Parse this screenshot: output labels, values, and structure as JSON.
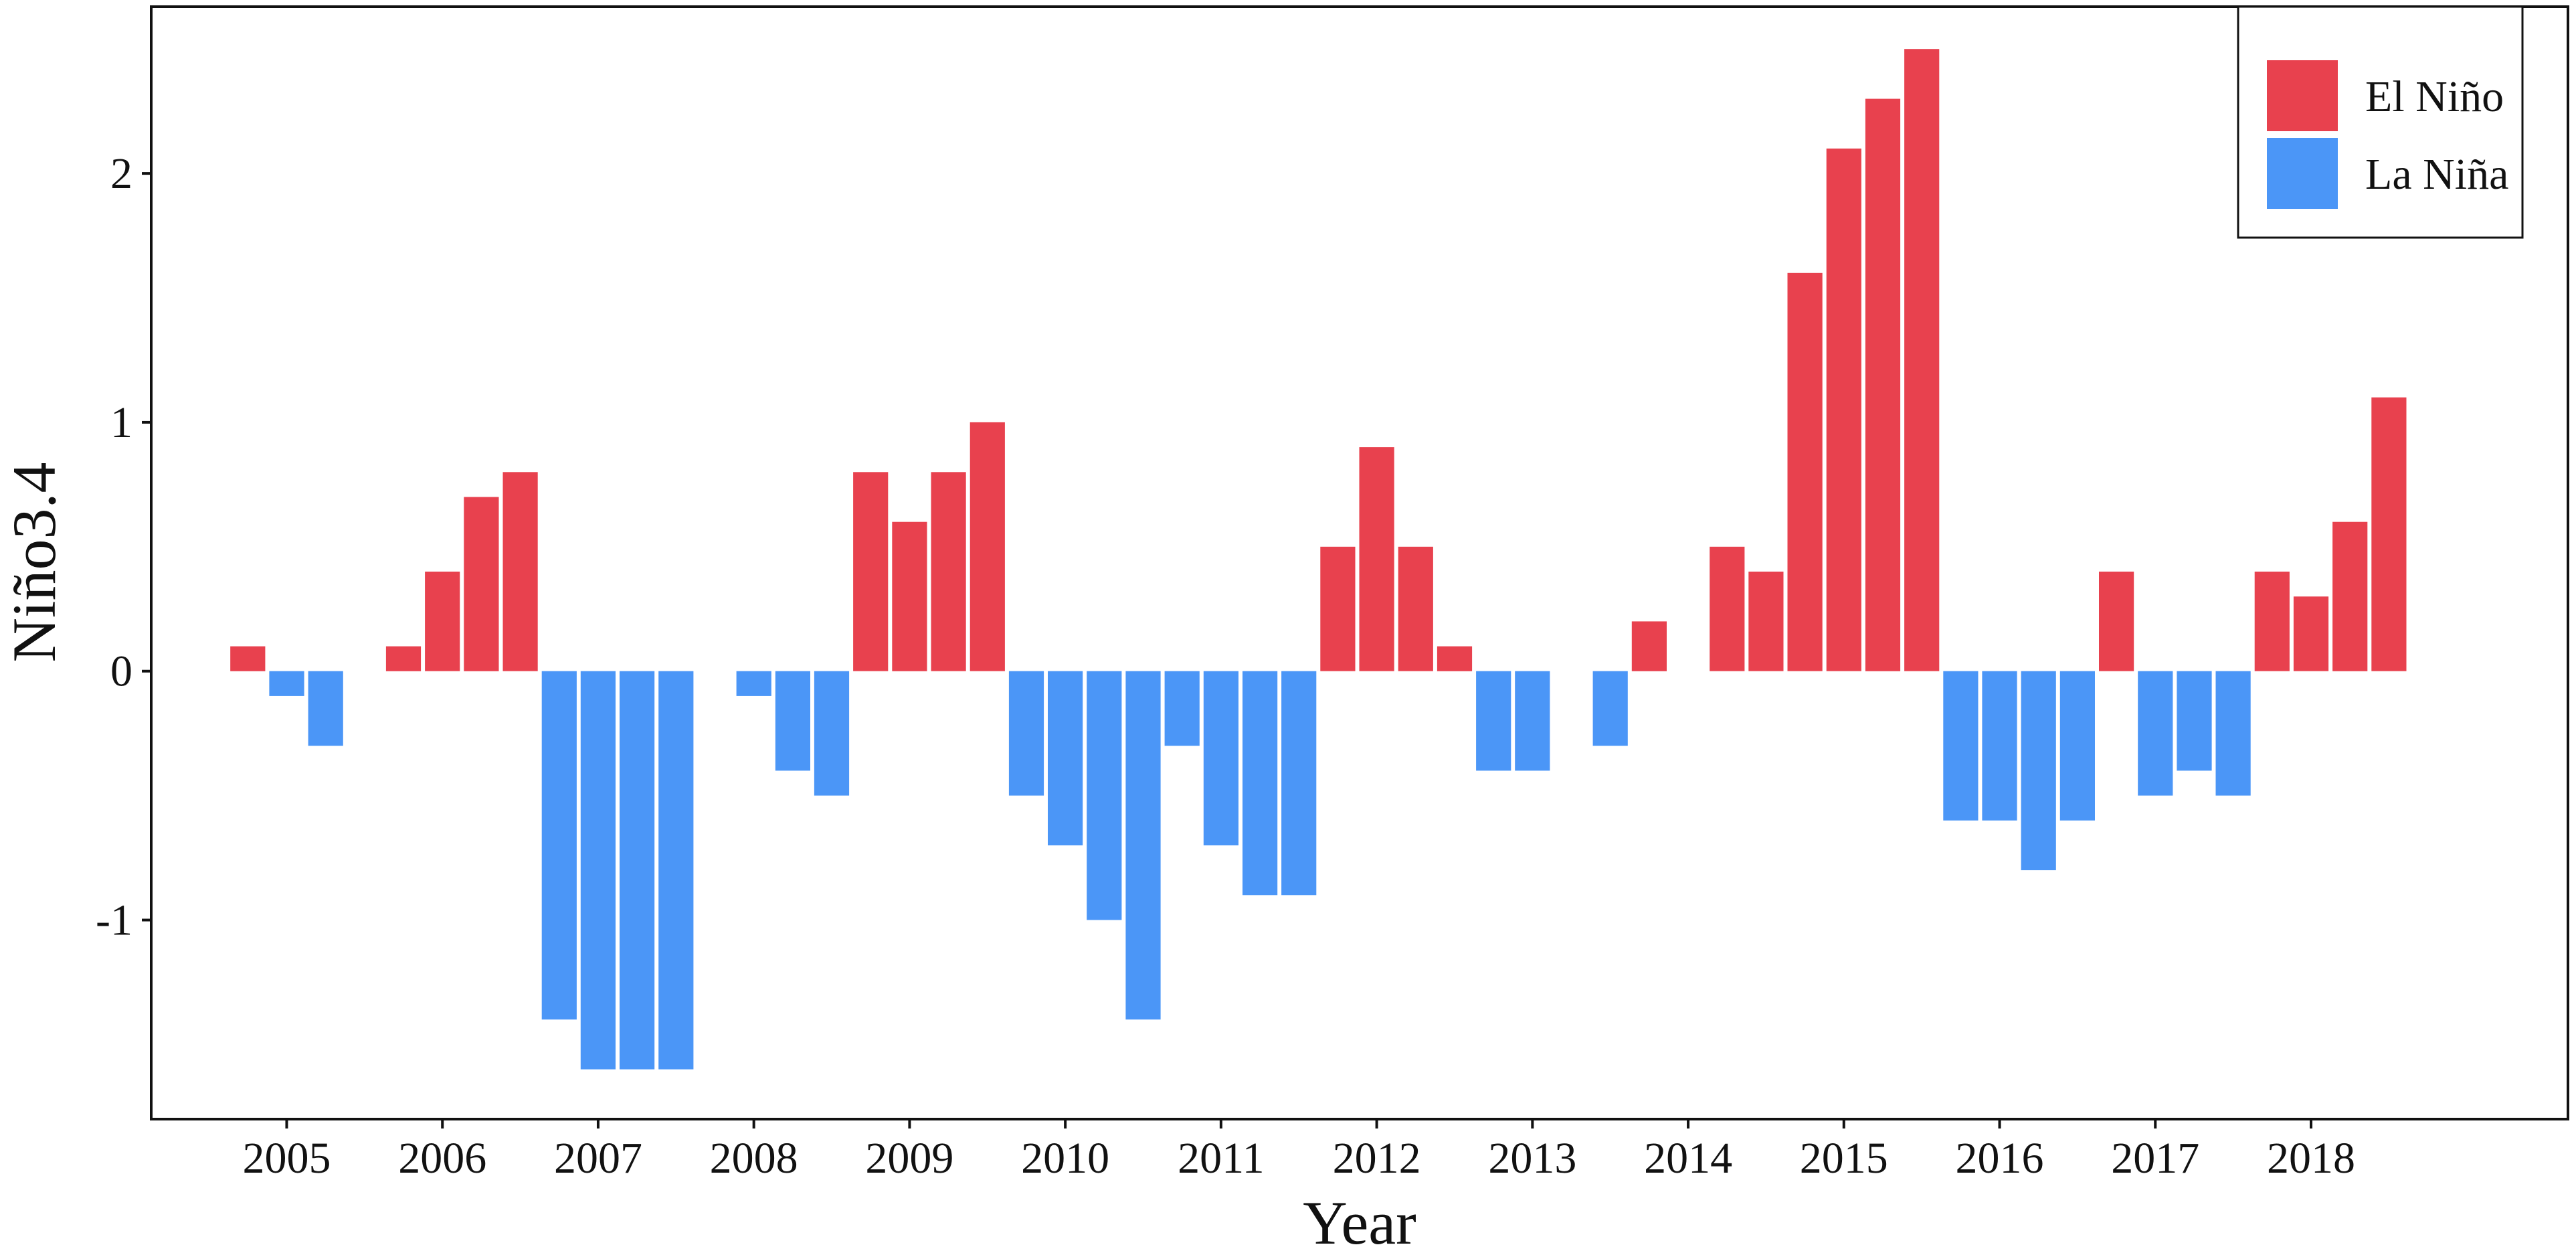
{
  "chart_data": {
    "type": "bar",
    "title": "",
    "xlabel": "Year",
    "ylabel": "Niño3.4",
    "ylim": [
      -1.8,
      2.67
    ],
    "y_ticks": [
      "-1",
      "0",
      "1",
      "2"
    ],
    "x_tick_labels": [
      "2005",
      "2006",
      "2007",
      "2008",
      "2009",
      "2010",
      "2011",
      "2012",
      "2013",
      "2014",
      "2015",
      "2016",
      "2017",
      "2018"
    ],
    "x_tick_years": [
      2005,
      2006,
      2007,
      2008,
      2009,
      2010,
      2011,
      2012,
      2013,
      2014,
      2015,
      2016,
      2017,
      2018
    ],
    "grid": false,
    "legend_position": "top-right",
    "colors": {
      "el_nino": "#E8414E",
      "la_nina": "#4B96F7"
    },
    "series": [
      {
        "name": "El Niño",
        "color": "#E8414E"
      },
      {
        "name": "La Niña",
        "color": "#4B96F7"
      }
    ],
    "bars": [
      {
        "x": 2004.75,
        "value": 0.1
      },
      {
        "x": 2005.0,
        "value": -0.1
      },
      {
        "x": 2005.25,
        "value": -0.3
      },
      {
        "x": 2005.75,
        "value": 0.1
      },
      {
        "x": 2006.0,
        "value": 0.4
      },
      {
        "x": 2006.25,
        "value": 0.7
      },
      {
        "x": 2006.5,
        "value": 0.8
      },
      {
        "x": 2006.75,
        "value": -1.4
      },
      {
        "x": 2007.0,
        "value": -1.6
      },
      {
        "x": 2007.25,
        "value": -1.6
      },
      {
        "x": 2007.5,
        "value": -1.6
      },
      {
        "x": 2008.0,
        "value": -0.1
      },
      {
        "x": 2008.25,
        "value": -0.4
      },
      {
        "x": 2008.5,
        "value": -0.5
      },
      {
        "x": 2008.75,
        "value": 0.8
      },
      {
        "x": 2009.0,
        "value": 0.6
      },
      {
        "x": 2009.25,
        "value": 0.8
      },
      {
        "x": 2009.5,
        "value": 1.0
      },
      {
        "x": 2009.75,
        "value": -0.5
      },
      {
        "x": 2010.0,
        "value": -0.7
      },
      {
        "x": 2010.25,
        "value": -1.0
      },
      {
        "x": 2010.5,
        "value": -1.4
      },
      {
        "x": 2010.75,
        "value": -0.3
      },
      {
        "x": 2011.0,
        "value": -0.7
      },
      {
        "x": 2011.25,
        "value": -0.9
      },
      {
        "x": 2011.5,
        "value": -0.9
      },
      {
        "x": 2011.75,
        "value": 0.5
      },
      {
        "x": 2012.0,
        "value": 0.9
      },
      {
        "x": 2012.25,
        "value": 0.5
      },
      {
        "x": 2012.5,
        "value": 0.1
      },
      {
        "x": 2012.75,
        "value": -0.4
      },
      {
        "x": 2013.0,
        "value": -0.4
      },
      {
        "x": 2013.5,
        "value": -0.3
      },
      {
        "x": 2013.75,
        "value": 0.2
      },
      {
        "x": 2014.25,
        "value": 0.5
      },
      {
        "x": 2014.5,
        "value": 0.4
      },
      {
        "x": 2014.75,
        "value": 1.6
      },
      {
        "x": 2015.0,
        "value": 2.1
      },
      {
        "x": 2015.25,
        "value": 2.3
      },
      {
        "x": 2015.5,
        "value": 2.5
      },
      {
        "x": 2015.75,
        "value": -0.6
      },
      {
        "x": 2016.0,
        "value": -0.6
      },
      {
        "x": 2016.25,
        "value": -0.8
      },
      {
        "x": 2016.5,
        "value": -0.6
      },
      {
        "x": 2016.75,
        "value": 0.4
      },
      {
        "x": 2017.0,
        "value": -0.5
      },
      {
        "x": 2017.25,
        "value": -0.4
      },
      {
        "x": 2017.5,
        "value": -0.5
      },
      {
        "x": 2017.75,
        "value": 0.4
      },
      {
        "x": 2018.0,
        "value": 0.3
      },
      {
        "x": 2018.25,
        "value": 0.6
      },
      {
        "x": 2018.5,
        "value": 1.1
      }
    ]
  }
}
